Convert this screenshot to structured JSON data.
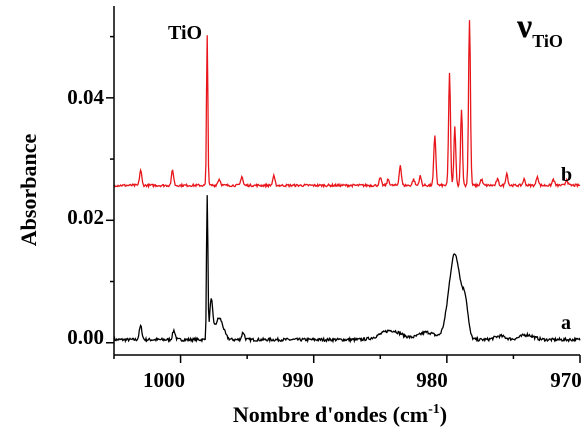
{
  "chart_data": {
    "type": "line",
    "title": "",
    "xlabel": "Nombre d'ondes (cm",
    "xlabel_sup": "-1",
    "xlabel_close": ")",
    "ylabel": "Absorbance",
    "xlim": [
      1005,
      970
    ],
    "ylim": [
      -0.002,
      0.055
    ],
    "xticks": [
      1000,
      990,
      980,
      970
    ],
    "yticks": [
      0.0,
      0.02,
      0.04
    ],
    "ytick_labels": [
      "0.00",
      "0.02",
      "0.04"
    ],
    "grid": false,
    "legend": "none",
    "annotations": {
      "tio_peak": "TiO",
      "nu_symbol": "ν",
      "nu_subscript": "TiO"
    },
    "series": [
      {
        "label": "a",
        "color": "#000000",
        "baseline": 0.0005,
        "noise": 0.00025,
        "peaks": [
          {
            "x": 1003.0,
            "h": 0.0022,
            "w": 0.1
          },
          {
            "x": 1000.5,
            "h": 0.0015,
            "w": 0.1
          },
          {
            "x": 998.0,
            "h": 0.0235,
            "w": 0.05
          },
          {
            "x": 997.7,
            "h": 0.006,
            "w": 0.12
          },
          {
            "x": 997.1,
            "h": 0.0035,
            "w": 0.3
          },
          {
            "x": 995.3,
            "h": 0.0012,
            "w": 0.1
          },
          {
            "x": 984.2,
            "h": 0.0015,
            "w": 0.8
          },
          {
            "x": 981.5,
            "h": 0.0012,
            "w": 0.6
          },
          {
            "x": 979.4,
            "h": 0.014,
            "w": 0.45
          },
          {
            "x": 978.6,
            "h": 0.0045,
            "w": 0.2
          },
          {
            "x": 976.0,
            "h": 0.0006,
            "w": 0.4
          },
          {
            "x": 974.0,
            "h": 0.0008,
            "w": 0.5
          }
        ]
      },
      {
        "label": "b",
        "color": "#e8161b",
        "baseline": 0.0257,
        "noise": 0.0002,
        "peaks": [
          {
            "x": 1003.0,
            "h": 0.0025,
            "w": 0.08
          },
          {
            "x": 1000.6,
            "h": 0.0025,
            "w": 0.08
          },
          {
            "x": 998.0,
            "h": 0.0245,
            "w": 0.05
          },
          {
            "x": 997.1,
            "h": 0.001,
            "w": 0.1
          },
          {
            "x": 995.4,
            "h": 0.0015,
            "w": 0.08
          },
          {
            "x": 993.0,
            "h": 0.0015,
            "w": 0.08
          },
          {
            "x": 985.0,
            "h": 0.0012,
            "w": 0.08
          },
          {
            "x": 984.4,
            "h": 0.001,
            "w": 0.08
          },
          {
            "x": 983.5,
            "h": 0.0033,
            "w": 0.08
          },
          {
            "x": 982.5,
            "h": 0.001,
            "w": 0.08
          },
          {
            "x": 982.0,
            "h": 0.0015,
            "w": 0.08
          },
          {
            "x": 980.9,
            "h": 0.008,
            "w": 0.08
          },
          {
            "x": 979.8,
            "h": 0.0185,
            "w": 0.07
          },
          {
            "x": 979.4,
            "h": 0.0095,
            "w": 0.07
          },
          {
            "x": 978.9,
            "h": 0.0125,
            "w": 0.07
          },
          {
            "x": 978.3,
            "h": 0.027,
            "w": 0.07
          },
          {
            "x": 977.4,
            "h": 0.001,
            "w": 0.08
          },
          {
            "x": 976.2,
            "h": 0.001,
            "w": 0.08
          },
          {
            "x": 975.5,
            "h": 0.002,
            "w": 0.08
          },
          {
            "x": 974.2,
            "h": 0.001,
            "w": 0.08
          },
          {
            "x": 973.2,
            "h": 0.0015,
            "w": 0.08
          },
          {
            "x": 972.0,
            "h": 0.001,
            "w": 0.08
          },
          {
            "x": 971.0,
            "h": 0.001,
            "w": 0.08
          }
        ]
      }
    ]
  }
}
